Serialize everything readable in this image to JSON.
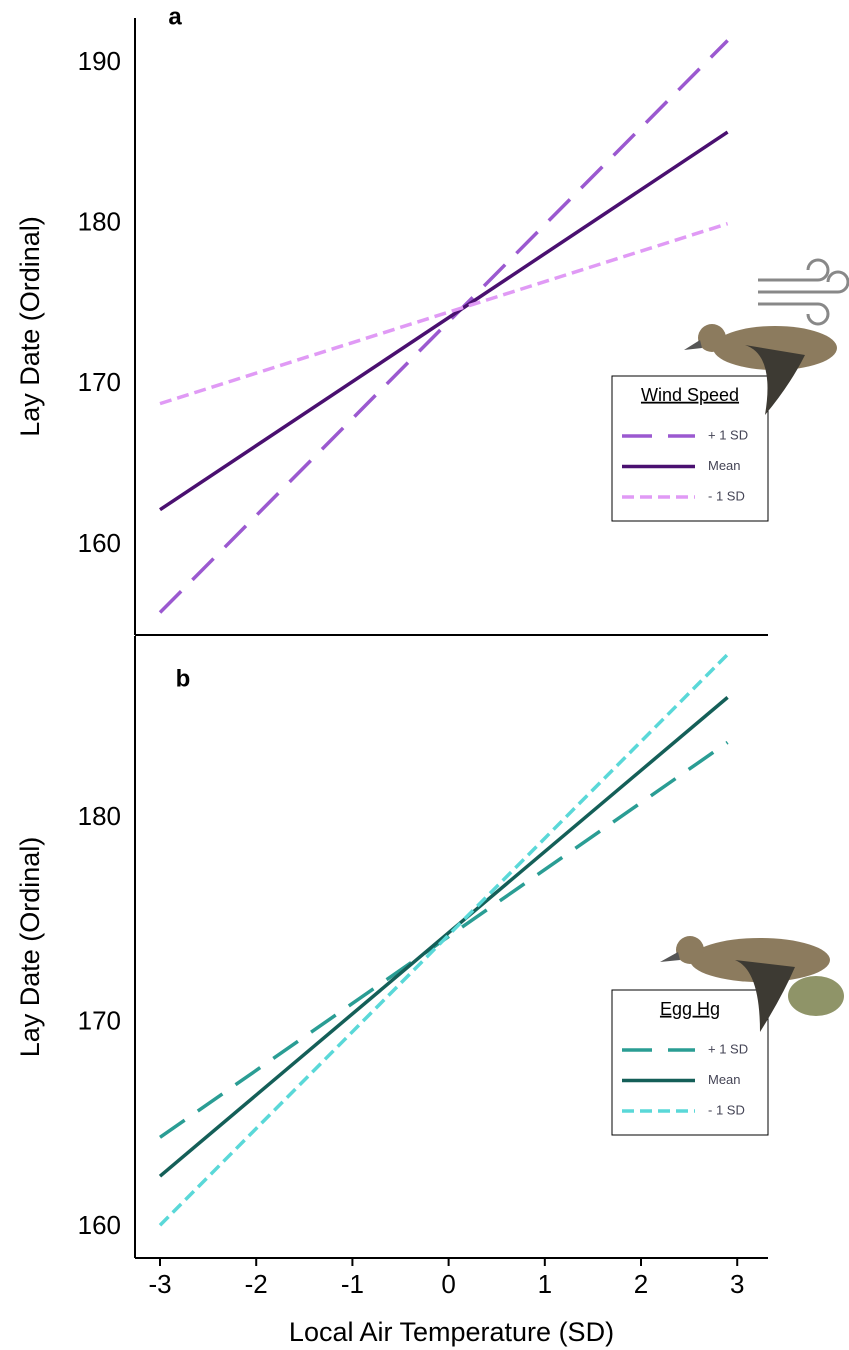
{
  "chart_data": [
    {
      "type": "line",
      "panel_label": "a",
      "ylabel": "Lay Date (Ordinal)",
      "x": [
        -3,
        2.9
      ],
      "xlim": [
        -3.26,
        3.32
      ],
      "ylim": [
        154.4,
        192.8
      ],
      "yticks": [
        160,
        170,
        180,
        190
      ],
      "grid": false,
      "legend_title": "Wind Speed",
      "legend": "right",
      "series": [
        {
          "name": "+ 1 SD",
          "color": "#9b59d0",
          "linestyle": "longdash",
          "values": [
            155.8,
            191.4
          ]
        },
        {
          "name": "Mean",
          "color": "#4a1070",
          "linestyle": "solid",
          "values": [
            162.2,
            185.7
          ]
        },
        {
          "name": "- 1 SD",
          "color": "#e09af5",
          "linestyle": "shortdash",
          "values": [
            168.8,
            180.0
          ]
        }
      ]
    },
    {
      "type": "line",
      "panel_label": "b",
      "ylabel": "Lay Date (Ordinal)",
      "xlabel": "Local Air Temperature (SD)",
      "x": [
        -3,
        2.9
      ],
      "xlim": [
        -3.26,
        3.32
      ],
      "xticks": [
        -3,
        -2,
        -1,
        0,
        1,
        2,
        3
      ],
      "ylim": [
        158.5,
        188.9
      ],
      "yticks": [
        160,
        170,
        180
      ],
      "grid": false,
      "legend_title": "Egg Hg",
      "legend": "right",
      "series": [
        {
          "name": "+ 1 SD",
          "color": "#2a9d94",
          "linestyle": "longdash",
          "values": [
            164.4,
            183.7
          ]
        },
        {
          "name": "Mean",
          "color": "#145f58",
          "linestyle": "solid",
          "values": [
            162.5,
            185.9
          ]
        },
        {
          "name": "- 1 SD",
          "color": "#5ad8d8",
          "linestyle": "shortdash",
          "values": [
            160.1,
            188.0
          ]
        }
      ]
    }
  ]
}
